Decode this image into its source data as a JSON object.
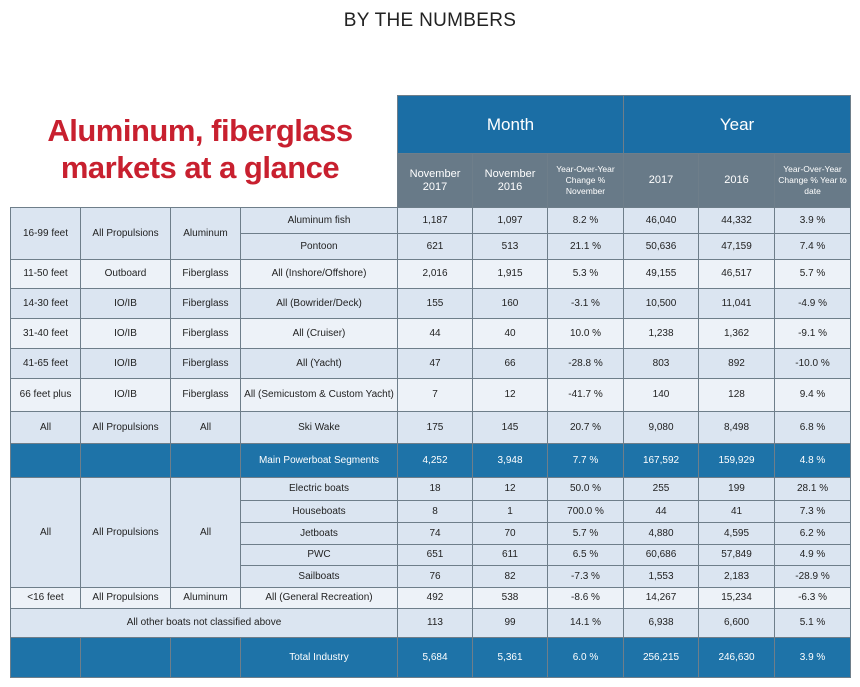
{
  "header": {
    "title": "BY THE NUMBERS",
    "headline": [
      "Aluminum, fiberglass",
      "markets at a glance"
    ]
  },
  "table": {
    "month": "Month",
    "year": "Year",
    "subheaders": [
      "November 2017",
      "November 2016",
      "Year-Over-Year Change % November",
      "2017",
      "2016",
      "Year-Over-Year Change % Year to date"
    ],
    "groups": [
      {
        "size": "16-99 feet",
        "propulsion": "All Propulsions",
        "material": "Aluminum",
        "rows": [
          {
            "segment": "Aluminum fish",
            "values": [
              "1,187",
              "1,097",
              "8.2 %",
              "46,040",
              "44,332",
              "3.9 %"
            ]
          },
          {
            "segment": "Pontoon",
            "values": [
              "621",
              "513",
              "21.1 %",
              "50,636",
              "47,159",
              "7.4 %"
            ]
          }
        ]
      },
      {
        "size": "11-50 feet",
        "propulsion": "Outboard",
        "material": "Fiberglass",
        "rows": [
          {
            "segment": "All (Inshore/Offshore)",
            "values": [
              "2,016",
              "1,915",
              "5.3 %",
              "49,155",
              "46,517",
              "5.7 %"
            ]
          }
        ]
      },
      {
        "size": "14-30 feet",
        "propulsion": "IO/IB",
        "material": "Fiberglass",
        "rows": [
          {
            "segment": "All (Bowrider/Deck)",
            "values": [
              "155",
              "160",
              "-3.1 %",
              "10,500",
              "11,041",
              "-4.9 %"
            ]
          }
        ]
      },
      {
        "size": "31-40 feet",
        "propulsion": "IO/IB",
        "material": "Fiberglass",
        "rows": [
          {
            "segment": "All (Cruiser)",
            "values": [
              "44",
              "40",
              "10.0 %",
              "1,238",
              "1,362",
              "-9.1 %"
            ]
          }
        ]
      },
      {
        "size": "41-65 feet",
        "propulsion": "IO/IB",
        "material": "Fiberglass",
        "rows": [
          {
            "segment": "All (Yacht)",
            "values": [
              "47",
              "66",
              "-28.8 %",
              "803",
              "892",
              "-10.0 %"
            ]
          }
        ]
      },
      {
        "size": "66 feet plus",
        "propulsion": "IO/IB",
        "material": "Fiberglass",
        "rows": [
          {
            "segment": "All (Semicustom & Custom Yacht)",
            "values": [
              "7",
              "12",
              "-41.7 %",
              "140",
              "128",
              "9.4 %"
            ]
          }
        ]
      },
      {
        "size": "All",
        "propulsion": "All Propulsions",
        "material": "All",
        "rows": [
          {
            "segment": "Ski Wake",
            "values": [
              "175",
              "145",
              "20.7 %",
              "9,080",
              "8,498",
              "6.8 %"
            ]
          }
        ]
      },
      {
        "rows": [
          {
            "segment": "Main Powerboat Segments",
            "values": [
              "4,252",
              "3,948",
              "7.7 %",
              "167,592",
              "159,929",
              "4.8 %"
            ]
          }
        ]
      },
      {
        "size": "All",
        "propulsion": "All Propulsions",
        "material": "All",
        "rows": [
          {
            "segment": "Electric boats",
            "values": [
              "18",
              "12",
              "50.0 %",
              "255",
              "199",
              "28.1 %"
            ]
          },
          {
            "segment": "Houseboats",
            "values": [
              "8",
              "1",
              "700.0 %",
              "44",
              "41",
              "7.3 %"
            ]
          },
          {
            "segment": "Jetboats",
            "values": [
              "74",
              "70",
              "5.7 %",
              "4,880",
              "4,595",
              "6.2 %"
            ]
          },
          {
            "segment": "PWC",
            "values": [
              "651",
              "611",
              "6.5 %",
              "60,686",
              "57,849",
              "4.9 %"
            ]
          },
          {
            "segment": "Sailboats",
            "values": [
              "76",
              "82",
              "-7.3 %",
              "1,553",
              "2,183",
              "-28.9 %"
            ]
          }
        ]
      },
      {
        "size": "<16 feet",
        "propulsion": "All Propulsions",
        "material": "Aluminum",
        "rows": [
          {
            "segment": "All (General Recreation)",
            "values": [
              "492",
              "538",
              "-8.6 %",
              "14,267",
              "15,234",
              "-6.3 %"
            ]
          }
        ]
      },
      {
        "label": "All other boats not classified above",
        "rows": [
          {
            "values": [
              "113",
              "99",
              "14.1 %",
              "6,938",
              "6,600",
              "5.1 %"
            ]
          }
        ]
      },
      {
        "rows": [
          {
            "segment": "Total Industry",
            "values": [
              "5,684",
              "5,361",
              "6.0 %",
              "256,215",
              "246,630",
              "3.9 %"
            ]
          }
        ]
      }
    ]
  }
}
